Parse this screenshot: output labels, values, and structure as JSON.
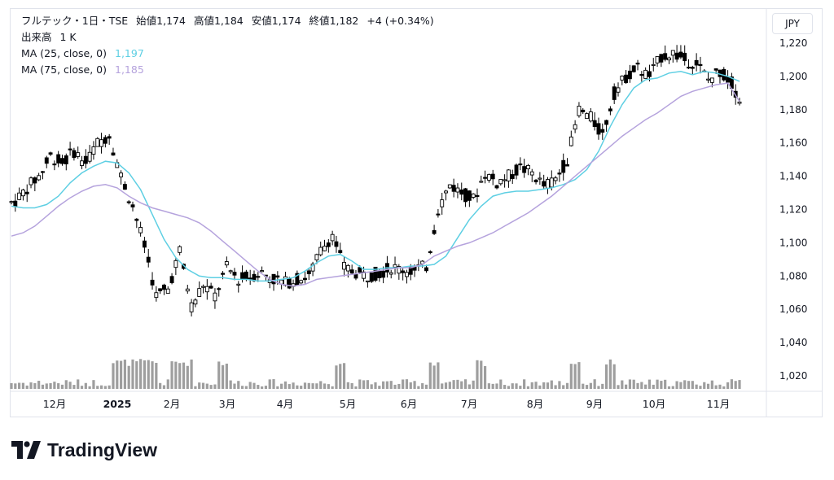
{
  "header": {
    "symbol": "フルテック・1日・TSE",
    "ohlc": [
      {
        "label": "始値",
        "value": "1,174"
      },
      {
        "label": "高値",
        "value": "1,184"
      },
      {
        "label": "安値",
        "value": "1,174"
      },
      {
        "label": "終値",
        "value": "1,182"
      }
    ],
    "change": "+4 (+0.34%)",
    "volume_label": "出来高",
    "volume_value": "1 K",
    "ma25_label": "MA (25, close, 0)",
    "ma25_value": "1,197",
    "ma75_label": "MA (75, close, 0)",
    "ma75_value": "1,185"
  },
  "currency": "JPY",
  "brand": "TradingView",
  "colors": {
    "ma25": "#5ecfe3",
    "ma75": "#b5a3dd",
    "candle": "#000000",
    "volume": "#9e9e9e",
    "text": "#131722",
    "grid": "#e0e3eb"
  },
  "chart_data": {
    "type": "candlestick",
    "y_ticks": [
      "1,220",
      "1,200",
      "1,180",
      "1,160",
      "1,140",
      "1,120",
      "1,100",
      "1,080",
      "1,060",
      "1,040",
      "1,020"
    ],
    "ylim": [
      1010,
      1226
    ],
    "x_labels": [
      "12月",
      "2025",
      "2月",
      "3月",
      "4月",
      "5月",
      "6月",
      "7月",
      "8月",
      "9月",
      "10月",
      "11月"
    ],
    "series": [
      {
        "name": "MA (25, close, 0)",
        "values": [
          1122,
          1121,
          1121,
          1123,
          1128,
          1136,
          1142,
          1146,
          1149,
          1148,
          1142,
          1132,
          1117,
          1102,
          1091,
          1084,
          1080,
          1079,
          1079,
          1078,
          1078,
          1077,
          1077,
          1078,
          1079,
          1083,
          1088,
          1092,
          1093,
          1089,
          1084,
          1084,
          1085,
          1085,
          1086,
          1086,
          1087,
          1092,
          1103,
          1114,
          1122,
          1128,
          1130,
          1131,
          1131,
          1132,
          1133,
          1135,
          1138,
          1144,
          1155,
          1170,
          1183,
          1193,
          1198,
          1199,
          1202,
          1203,
          1201,
          1203,
          1202,
          1200,
          1197
        ]
      },
      {
        "name": "MA (75, close, 0)",
        "values": [
          1104,
          1106,
          1110,
          1116,
          1122,
          1127,
          1131,
          1134,
          1135,
          1133,
          1128,
          1124,
          1121,
          1119,
          1117,
          1115,
          1112,
          1107,
          1101,
          1095,
          1089,
          1083,
          1078,
          1075,
          1074,
          1075,
          1078,
          1079,
          1080,
          1081,
          1082,
          1083,
          1084,
          1085,
          1085,
          1087,
          1092,
          1095,
          1098,
          1100,
          1103,
          1106,
          1110,
          1114,
          1118,
          1123,
          1128,
          1134,
          1140,
          1146,
          1152,
          1158,
          1164,
          1169,
          1174,
          1178,
          1183,
          1188,
          1191,
          1193,
          1195,
          1196,
          1185
        ]
      },
      {
        "name": "Price (close)",
        "values": [
          1125,
          1133,
          1140,
          1152,
          1148,
          1155,
          1148,
          1160,
          1165,
          1140,
          1122,
          1098,
          1068,
          1072,
          1095,
          1062,
          1075,
          1068,
          1085,
          1078,
          1080,
          1082,
          1078,
          1076,
          1078,
          1080,
          1095,
          1105,
          1085,
          1082,
          1080,
          1082,
          1085,
          1084,
          1083,
          1086,
          1120,
          1135,
          1130,
          1126,
          1142,
          1136,
          1140,
          1145,
          1142,
          1134,
          1138,
          1150,
          1180,
          1175,
          1165,
          1190,
          1200,
          1205,
          1200,
          1212,
          1214,
          1210,
          1208,
          1198,
          1203,
          1196,
          1182
        ]
      }
    ]
  }
}
